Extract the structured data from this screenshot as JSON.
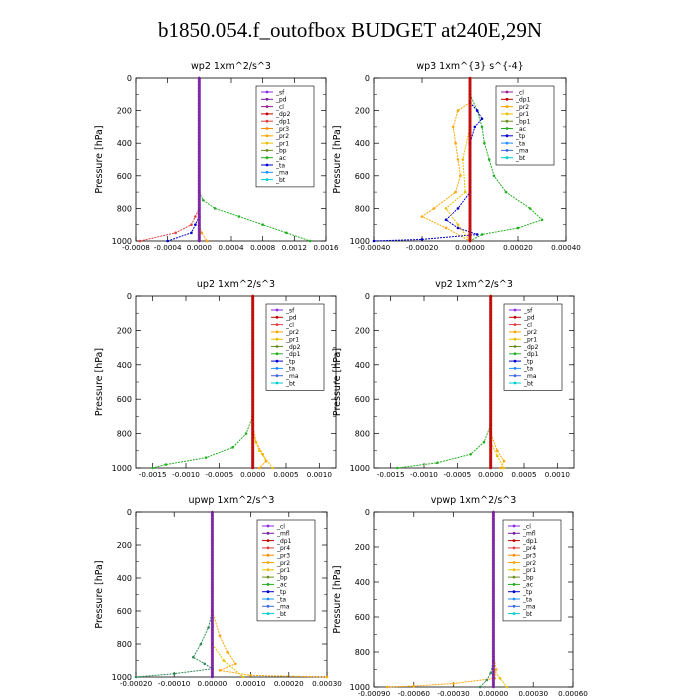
{
  "title": "b1850.054.f_outofbox  BUDGET at240E,29N",
  "chart_data": [
    {
      "type": "line",
      "title": "wp2   1xm^2/s^3",
      "ylabel": "Pressure  [hPa]",
      "ylim": [
        1000,
        0
      ],
      "xlim": [
        -0.0008,
        0.0016
      ],
      "yticks": [
        "0",
        "200",
        "400",
        "600",
        "800",
        "1000"
      ],
      "xticks": [
        "-0.0008",
        "-0.0004",
        "0.0000",
        "0.0004",
        "0.0008",
        "0.0012",
        "0.0016"
      ],
      "legend": [
        "_sf",
        "_pd",
        "_cl",
        "_dp2",
        "_dp1",
        "_pr3",
        "_pr2",
        "_pr1",
        "_bp",
        "_ac",
        "_ta",
        "_ma",
        "_bt"
      ],
      "legend_colors": [
        "#8a2be2",
        "#7a1fa2",
        "#9b1c8c",
        "#c00000",
        "#e04040",
        "#ff8c00",
        "#ffa500",
        "#e8c000",
        "#6b8e23",
        "#22b022",
        "#0000cd",
        "#1e90ff",
        "#00ced1"
      ],
      "series": [
        {
          "color": "#22b022",
          "points": [
            [
              0,
              0
            ],
            [
              0,
              700
            ],
            [
              5e-05,
              750
            ],
            [
              0.0002,
              800
            ],
            [
              0.0005,
              850
            ],
            [
              0.0008,
              900
            ],
            [
              0.0011,
              950
            ],
            [
              0.0014,
              1000
            ]
          ]
        },
        {
          "color": "#e04040",
          "points": [
            [
              0,
              0
            ],
            [
              0,
              800
            ],
            [
              -5e-05,
              850
            ],
            [
              -0.0001,
              900
            ],
            [
              -0.0003,
              950
            ],
            [
              -0.00075,
              1000
            ]
          ]
        },
        {
          "color": "#0000cd",
          "points": [
            [
              0,
              0
            ],
            [
              0,
              850
            ],
            [
              -5e-05,
              900
            ],
            [
              -0.0001,
              950
            ],
            [
              -0.0004,
              1000
            ]
          ]
        },
        {
          "color": "#ffa500",
          "points": [
            [
              0,
              0
            ],
            [
              0,
              900
            ],
            [
              3e-05,
              950
            ],
            [
              0.0001,
              1000
            ]
          ]
        },
        {
          "color": "#7a1fa2",
          "points": [
            [
              0,
              0
            ],
            [
              0,
              1000
            ]
          ]
        }
      ]
    },
    {
      "type": "line",
      "title": "wp3   1xm^{3} s^{-4}",
      "ylabel": "Pressure  [hPa]",
      "ylim": [
        1000,
        0
      ],
      "xlim": [
        -0.0004,
        0.0004
      ],
      "yticks": [
        "0",
        "200",
        "400",
        "600",
        "800",
        "1000"
      ],
      "xticks": [
        "-0.00040",
        "-0.00020",
        "0.00000",
        "0.00020",
        "0.00040"
      ],
      "legend": [
        "_cl",
        "_dp1",
        "_pr2",
        "_pr1",
        "_bp1",
        "_ac",
        "_tp",
        "_ta",
        "_ma",
        "_bt"
      ],
      "legend_colors": [
        "#9b1c8c",
        "#c00000",
        "#ffa500",
        "#e8c000",
        "#6b8e23",
        "#22b022",
        "#0000cd",
        "#1e90ff",
        "#4169e1",
        "#00ced1"
      ],
      "series": [
        {
          "color": "#22b022",
          "points": [
            [
              0,
              100
            ],
            [
              3e-05,
              200
            ],
            [
              5e-05,
              300
            ],
            [
              6e-05,
              400
            ],
            [
              8e-05,
              500
            ],
            [
              0.0001,
              600
            ],
            [
              0.00015,
              700
            ],
            [
              0.00025,
              800
            ],
            [
              0.0003,
              870
            ],
            [
              0.0002,
              920
            ],
            [
              5e-05,
              960
            ],
            [
              0,
              1000
            ]
          ]
        },
        {
          "color": "#ffa500",
          "points": [
            [
              0,
              150
            ],
            [
              -5e-05,
              200
            ],
            [
              -7e-05,
              300
            ],
            [
              -6e-05,
              400
            ],
            [
              -5e-05,
              500
            ],
            [
              -4e-05,
              600
            ],
            [
              -6e-05,
              700
            ],
            [
              -0.00015,
              800
            ],
            [
              -0.0002,
              850
            ],
            [
              -0.0001,
              920
            ],
            [
              0,
              1000
            ]
          ]
        },
        {
          "color": "#0000cd",
          "points": [
            [
              0,
              150
            ],
            [
              3e-05,
              200
            ],
            [
              5e-05,
              250
            ],
            [
              2e-05,
              300
            ],
            [
              0,
              400
            ],
            [
              0,
              700
            ],
            [
              -5e-05,
              800
            ],
            [
              -0.0001,
              870
            ],
            [
              -5e-05,
              920
            ],
            [
              3e-05,
              960
            ],
            [
              -0.0002,
              990
            ],
            [
              -0.0004,
              1000
            ]
          ]
        },
        {
          "color": "#e8c000",
          "points": [
            [
              0,
              300
            ],
            [
              -3e-05,
              500
            ],
            [
              -2e-05,
              700
            ],
            [
              -0.0001,
              800
            ],
            [
              -5e-05,
              900
            ],
            [
              0,
              1000
            ]
          ]
        },
        {
          "color": "#c00000",
          "points": [
            [
              0,
              0
            ],
            [
              0,
              1000
            ]
          ]
        }
      ]
    },
    {
      "type": "line",
      "title": "up2   1xm^2/s^3",
      "ylabel": "Pressure  [hPa]",
      "ylim": [
        1000,
        0
      ],
      "xlim": [
        -0.00175,
        0.00125
      ],
      "yticks": [
        "0",
        "200",
        "400",
        "600",
        "800",
        "1000"
      ],
      "xticks": [
        "-0.0015",
        "-0.0010",
        "-0.0005",
        "0.0000",
        "0.0005",
        "0.0010"
      ],
      "legend": [
        "_sf",
        "_pd",
        "_cl",
        "_pr2",
        "_pr1",
        "_dp2",
        "_dp1",
        "_tp",
        "_ta",
        "_ma",
        "_bt"
      ],
      "legend_colors": [
        "#8a2be2",
        "#c00000",
        "#e04040",
        "#ffa500",
        "#e8c000",
        "#6b8e23",
        "#22b022",
        "#0000cd",
        "#1e90ff",
        "#4169e1",
        "#00ced1"
      ],
      "series": [
        {
          "color": "#22b022",
          "points": [
            [
              0,
              0
            ],
            [
              0,
              700
            ],
            [
              -0.0001,
              800
            ],
            [
              -0.0003,
              880
            ],
            [
              -0.0007,
              940
            ],
            [
              -0.0013,
              980
            ],
            [
              -0.0015,
              1000
            ]
          ]
        },
        {
          "color": "#ffa500",
          "points": [
            [
              0,
              0
            ],
            [
              0,
              750
            ],
            [
              5e-05,
              850
            ],
            [
              0.00015,
              920
            ],
            [
              0.0002,
              960
            ],
            [
              0.0001,
              1000
            ]
          ]
        },
        {
          "color": "#e8c000",
          "points": [
            [
              0,
              800
            ],
            [
              0.0001,
              900
            ],
            [
              0.0003,
              1000
            ]
          ]
        },
        {
          "color": "#c00000",
          "points": [
            [
              0,
              0
            ],
            [
              0,
              1000
            ]
          ]
        }
      ]
    },
    {
      "type": "line",
      "title": "vp2   1xm^2/s^3",
      "ylabel": "Pressure  [hPa]",
      "ylim": [
        1000,
        0
      ],
      "xlim": [
        -0.00175,
        0.00125
      ],
      "yticks": [
        "0",
        "200",
        "400",
        "600",
        "800",
        "1000"
      ],
      "xticks": [
        "-0.0015",
        "-0.0010",
        "-0.0005",
        "0.0000",
        "0.0005",
        "0.0010"
      ],
      "legend": [
        "_sf",
        "_pd",
        "_cl",
        "_pr2",
        "_pr1",
        "_dp2",
        "_dp1",
        "_tp",
        "_ta",
        "_ma",
        "_bt"
      ],
      "legend_colors": [
        "#8a2be2",
        "#c00000",
        "#e04040",
        "#ffa500",
        "#e8c000",
        "#6b8e23",
        "#22b022",
        "#0000cd",
        "#1e90ff",
        "#4169e1",
        "#00ced1"
      ],
      "series": [
        {
          "color": "#22b022",
          "points": [
            [
              0,
              0
            ],
            [
              0,
              750
            ],
            [
              -0.0001,
              850
            ],
            [
              -0.0003,
              920
            ],
            [
              -0.0008,
              970
            ],
            [
              -0.0014,
              1000
            ]
          ]
        },
        {
          "color": "#ffa500",
          "points": [
            [
              0,
              0
            ],
            [
              0,
              800
            ],
            [
              0.0001,
              900
            ],
            [
              0.0002,
              960
            ],
            [
              0.00015,
              1000
            ]
          ]
        },
        {
          "color": "#e8c000",
          "points": [
            [
              0,
              850
            ],
            [
              0.0001,
              930
            ],
            [
              0.0002,
              1000
            ]
          ]
        },
        {
          "color": "#c00000",
          "points": [
            [
              0,
              0
            ],
            [
              0,
              1000
            ]
          ]
        }
      ]
    },
    {
      "type": "line",
      "title": "upwp   1xm^2/s^3",
      "ylabel": "Pressure  [hPa]",
      "ylim": [
        1000,
        0
      ],
      "xlim": [
        -0.0002,
        0.0003
      ],
      "yticks": [
        "0",
        "200",
        "400",
        "600",
        "800",
        "1000"
      ],
      "xticks": [
        "-0.00020",
        "-0.00010",
        "0.00000",
        "0.00010",
        "0.00020",
        "0.00030"
      ],
      "legend": [
        "_cl",
        "_mfl",
        "_dp1",
        "_pr4",
        "_pr3",
        "_pr2",
        "_pr1",
        "_bp",
        "_ac",
        "_tp",
        "_ta",
        "_ma",
        "_bt"
      ],
      "legend_colors": [
        "#8a2be2",
        "#7a1fa2",
        "#c00000",
        "#e04040",
        "#ff8c00",
        "#ffa500",
        "#e8c000",
        "#6b8e23",
        "#22b022",
        "#0000cd",
        "#1e90ff",
        "#4169e1",
        "#00ced1"
      ],
      "series": [
        {
          "color": "#2e8b57",
          "points": [
            [
              0,
              0
            ],
            [
              0,
              600
            ],
            [
              -1e-05,
              700
            ],
            [
              -3e-05,
              800
            ],
            [
              -5e-05,
              880
            ],
            [
              -2e-05,
              920
            ],
            [
              0,
              950
            ],
            [
              -0.0001,
              980
            ],
            [
              -0.0002,
              1000
            ]
          ]
        },
        {
          "color": "#ffa500",
          "points": [
            [
              0,
              0
            ],
            [
              0,
              600
            ],
            [
              2e-05,
              750
            ],
            [
              4e-05,
              850
            ],
            [
              6e-05,
              920
            ],
            [
              2e-05,
              960
            ],
            [
              0.0001,
              990
            ],
            [
              0.0003,
              1000
            ]
          ]
        },
        {
          "color": "#e8c000",
          "points": [
            [
              0,
              800
            ],
            [
              3e-05,
              900
            ],
            [
              8e-05,
              1000
            ]
          ]
        },
        {
          "color": "#7a1fa2",
          "points": [
            [
              0,
              0
            ],
            [
              0,
              1000
            ]
          ]
        }
      ]
    },
    {
      "type": "line",
      "title": "vpwp   1xm^2/s^3",
      "ylabel": "Pressure  [hPa]",
      "ylim": [
        1000,
        0
      ],
      "xlim": [
        -0.0009,
        0.0006
      ],
      "yticks": [
        "0",
        "200",
        "400",
        "600",
        "800",
        "1000"
      ],
      "xticks": [
        "-0.00090",
        "-0.00060",
        "-0.00030",
        "0.00000",
        "0.00030",
        "0.00060"
      ],
      "legend": [
        "_cl",
        "_mfl",
        "_dp1",
        "_pr4",
        "_pr3",
        "_pr2",
        "_pr1",
        "_bp",
        "_ac",
        "_tp",
        "_ta",
        "_ma",
        "_bt"
      ],
      "legend_colors": [
        "#8a2be2",
        "#7a1fa2",
        "#c00000",
        "#e04040",
        "#ff8c00",
        "#ffa500",
        "#e8c000",
        "#6b8e23",
        "#22b022",
        "#0000cd",
        "#1e90ff",
        "#4169e1",
        "#00ced1"
      ],
      "series": [
        {
          "color": "#ffa500",
          "points": [
            [
              0,
              0
            ],
            [
              0,
              800
            ],
            [
              2e-05,
              900
            ],
            [
              1e-05,
              950
            ],
            [
              -0.0003,
              980
            ],
            [
              -0.0006,
              995
            ],
            [
              -0.0008,
              1000
            ]
          ]
        },
        {
          "color": "#2e8b57",
          "points": [
            [
              0,
              0
            ],
            [
              0,
              850
            ],
            [
              -2e-05,
              920
            ],
            [
              -5e-05,
              960
            ],
            [
              -0.0001,
              1000
            ]
          ]
        },
        {
          "color": "#e8c000",
          "points": [
            [
              0,
              900
            ],
            [
              5e-05,
              950
            ],
            [
              0.0001,
              1000
            ]
          ]
        },
        {
          "color": "#7a1fa2",
          "points": [
            [
              0,
              0
            ],
            [
              0,
              1000
            ]
          ]
        }
      ]
    }
  ]
}
